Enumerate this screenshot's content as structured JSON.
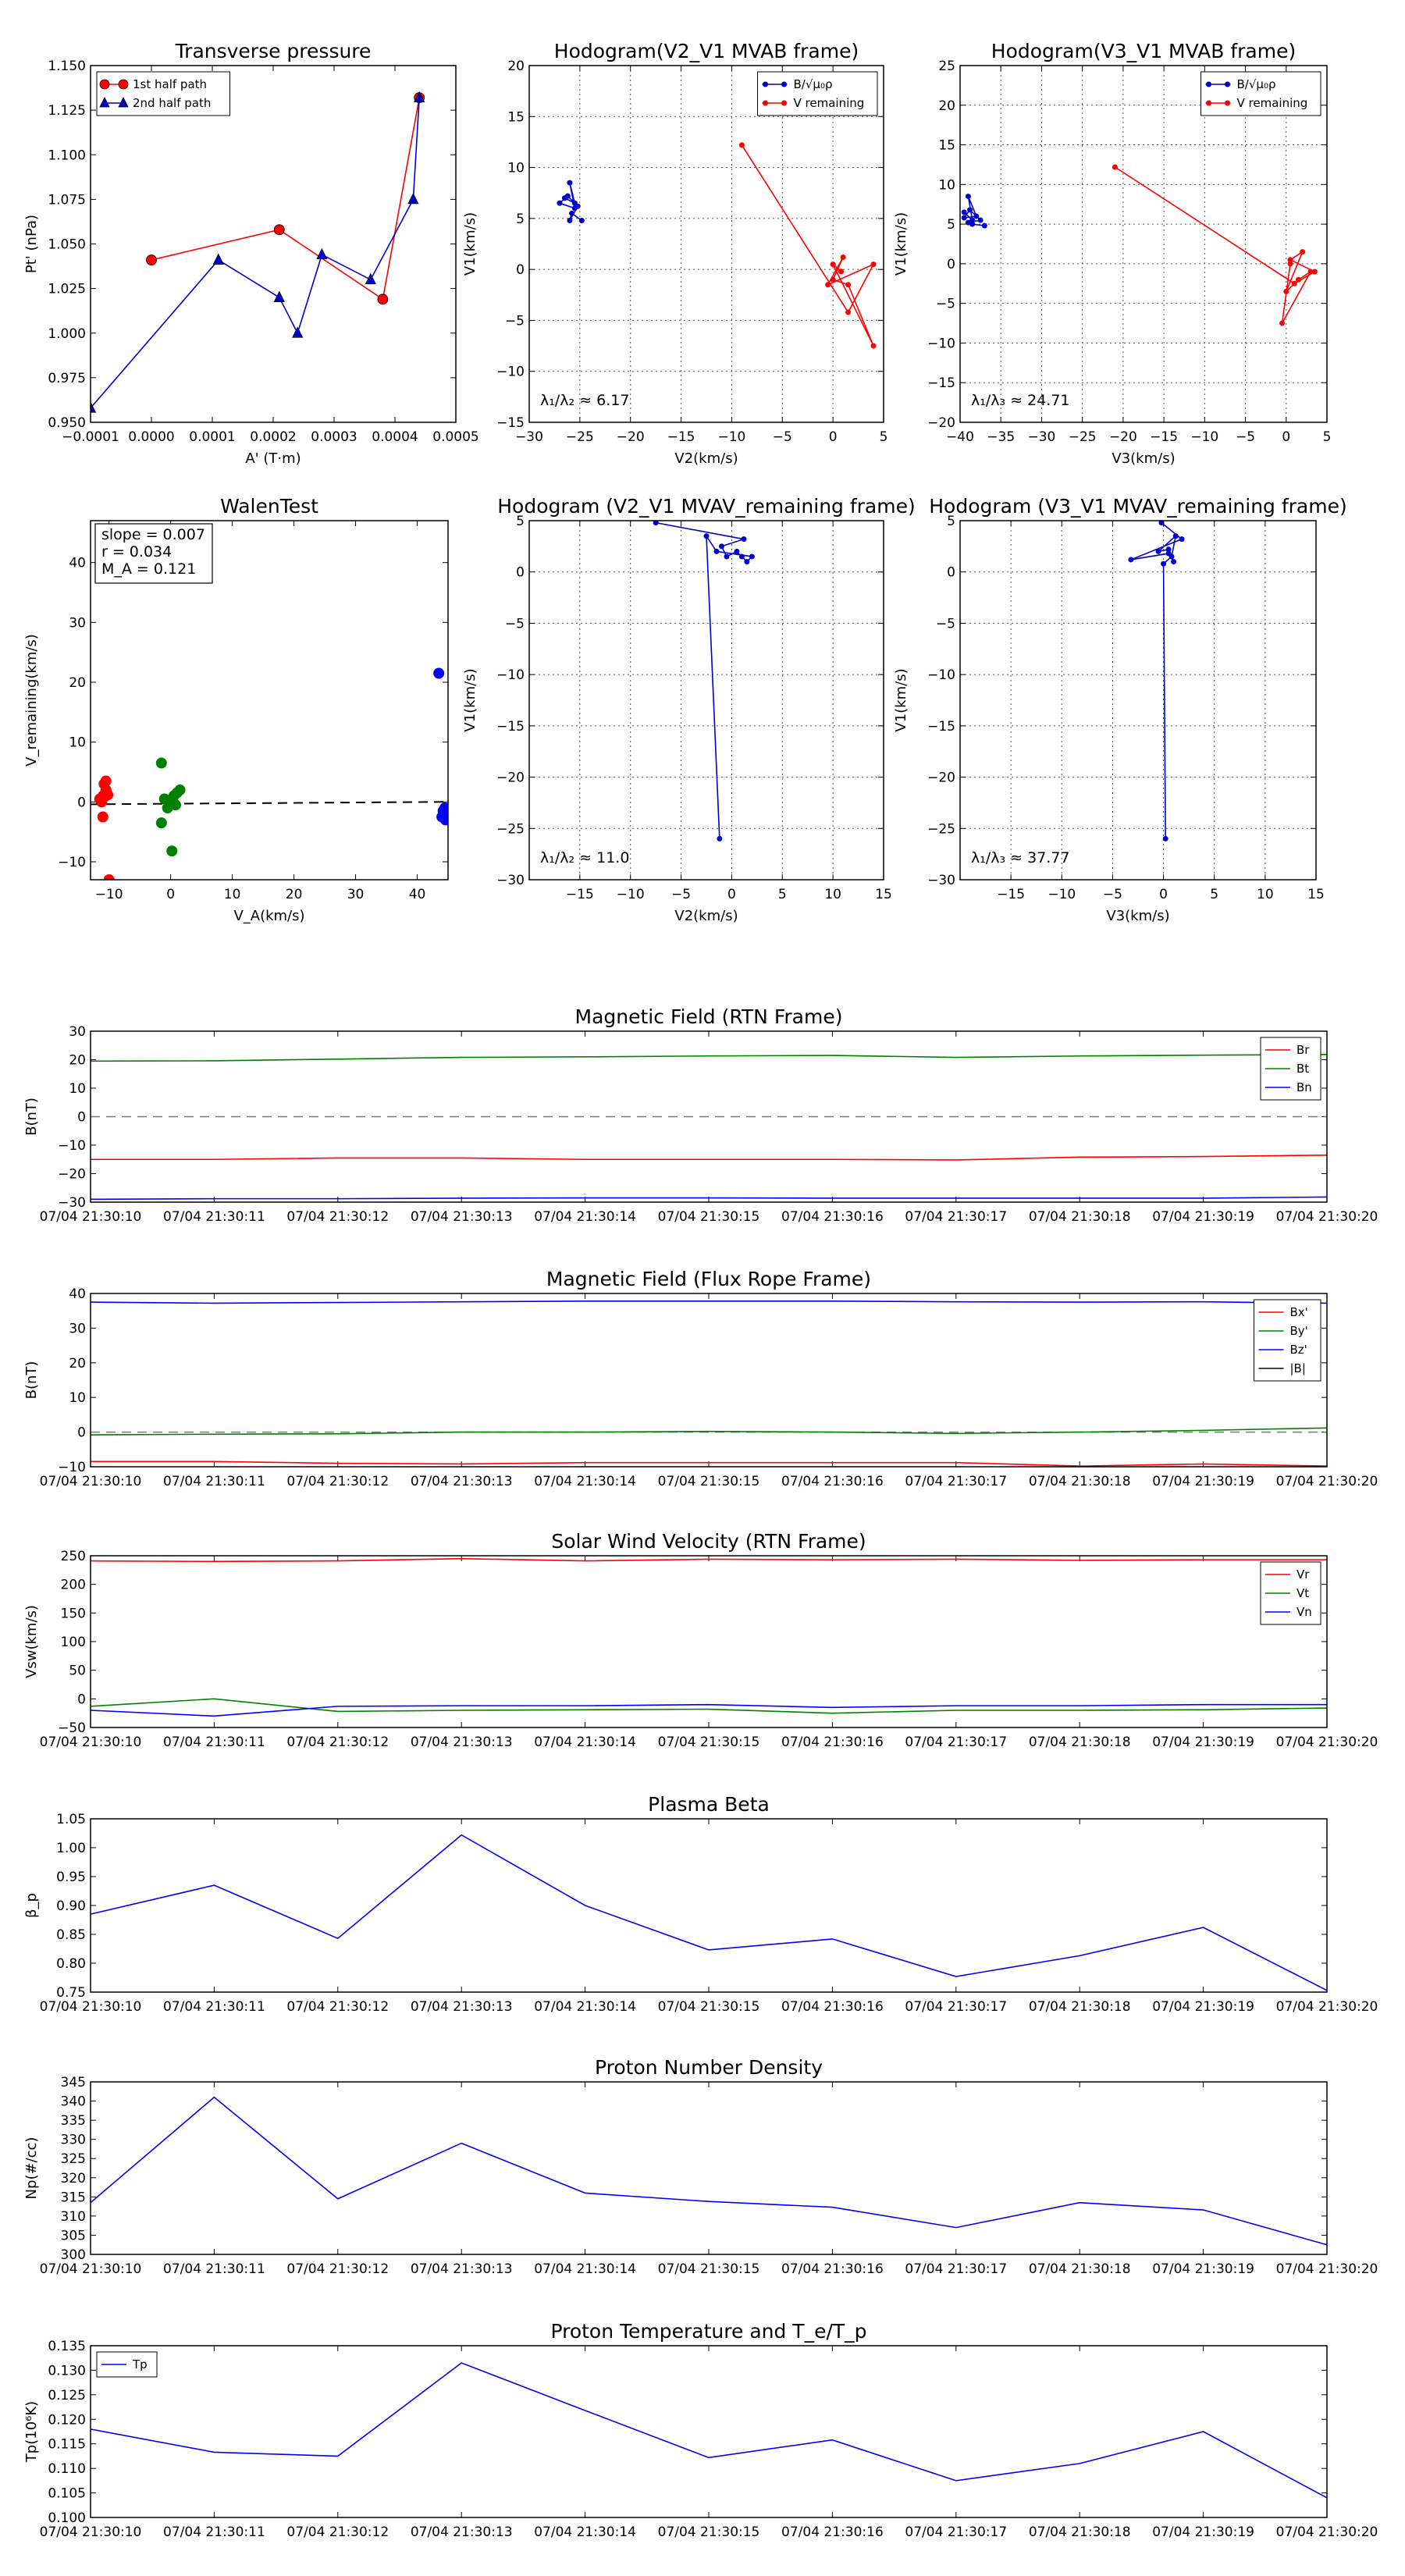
{
  "chart_data": [
    {
      "type": "line",
      "title": "Transverse pressure",
      "xlabel": "A' (T·m)",
      "ylabel": "Pt' (nPa)",
      "xlim": [
        -0.0001,
        0.0005
      ],
      "ylim": [
        0.95,
        1.15
      ],
      "xtick_values": [
        -0.0001,
        0,
        0.0001,
        0.0002,
        0.0003,
        0.0004,
        0.0005
      ],
      "xtick_labels": [
        "−0.0001",
        "0.0000",
        "0.0001",
        "0.0002",
        "0.0003",
        "0.0004",
        "0.0005"
      ],
      "ytick_values": [
        0.95,
        0.975,
        1.0,
        1.025,
        1.05,
        1.075,
        1.1,
        1.125,
        1.15
      ],
      "ytick_labels": [
        "0.950",
        "0.975",
        "1.000",
        "1.025",
        "1.050",
        "1.075",
        "1.100",
        "1.125",
        "1.150"
      ],
      "legend": "top-left",
      "series": [
        {
          "name": "1st half path",
          "color": "#ff0000",
          "marker": "circle",
          "x": [
            0.0,
            0.00021,
            0.00038,
            0.00044
          ],
          "y": [
            1.041,
            1.058,
            1.019,
            1.132
          ]
        },
        {
          "name": "2nd half path",
          "color": "#0000cc",
          "marker": "triangle",
          "x": [
            -0.0001,
            0.00011,
            0.00021,
            0.00024,
            0.00028,
            0.00036,
            0.00043,
            0.00044
          ],
          "y": [
            0.958,
            1.041,
            1.02,
            1.0,
            1.044,
            1.03,
            1.075,
            1.132
          ]
        }
      ]
    },
    {
      "type": "line",
      "title": "Hodogram(V2_V1 MVAB frame)",
      "xlabel": "V2(km/s)",
      "ylabel": "V1(km/s)",
      "xlim": [
        -30,
        5
      ],
      "ylim": [
        -15,
        20
      ],
      "xtick_values": [
        -30,
        -25,
        -20,
        -15,
        -10,
        -5,
        0,
        5
      ],
      "xtick_labels": [
        "−30",
        "−25",
        "−20",
        "−15",
        "−10",
        "−5",
        "0",
        "5"
      ],
      "ytick_values": [
        -15,
        -10,
        -5,
        0,
        5,
        10,
        15,
        20
      ],
      "ytick_labels": [
        "−15",
        "−10",
        "−5",
        "0",
        "5",
        "10",
        "15",
        "20"
      ],
      "legend": "top-right",
      "annotation": "λ₁/λ₂ ≈ 6.17",
      "series": [
        {
          "name": "B/√μ₀ρ",
          "color": "#0000cc",
          "x": [
            -26.5,
            -25.5,
            -26.0,
            -25.5,
            -27.0,
            -26.2,
            -25.2,
            -26.0,
            -25.8,
            -24.8
          ],
          "y": [
            7.0,
            6.5,
            8.5,
            6.0,
            6.5,
            7.2,
            6.2,
            4.8,
            5.5,
            4.8
          ]
        },
        {
          "name": "V remaining",
          "color": "#ff0000",
          "x": [
            -9.0,
            1.5,
            4.0,
            -0.5,
            1.0,
            0.0,
            1.5,
            4.0,
            0.0,
            0.8
          ],
          "y": [
            12.2,
            -4.2,
            0.5,
            -1.5,
            1.2,
            -1.0,
            -1.5,
            -7.5,
            0.5,
            -0.2
          ]
        }
      ]
    },
    {
      "type": "line",
      "title": "Hodogram(V3_V1 MVAB frame)",
      "xlabel": "V3(km/s)",
      "ylabel": "V1(km/s)",
      "xlim": [
        -40,
        5
      ],
      "ylim": [
        -20,
        25
      ],
      "xtick_values": [
        -40,
        -35,
        -30,
        -25,
        -20,
        -15,
        -10,
        -5,
        0,
        5
      ],
      "xtick_labels": [
        "−40",
        "−35",
        "−30",
        "−25",
        "−20",
        "−15",
        "−10",
        "−5",
        "0",
        "5"
      ],
      "ytick_values": [
        -20,
        -15,
        -10,
        -5,
        0,
        5,
        10,
        15,
        20,
        25
      ],
      "ytick_labels": [
        "−20",
        "−15",
        "−10",
        "−5",
        "0",
        "5",
        "10",
        "15",
        "20",
        "25"
      ],
      "legend": "top-right",
      "annotation": "λ₁/λ₃ ≈ 24.71",
      "series": [
        {
          "name": "B/√μ₀ρ",
          "color": "#0000cc",
          "x": [
            -39.5,
            -38.5,
            -39.0,
            -38.0,
            -39.5,
            -38.8,
            -37.5,
            -39.0,
            -38.5,
            -37.0
          ],
          "y": [
            6.5,
            5.5,
            8.5,
            6.0,
            5.8,
            6.8,
            5.5,
            5.2,
            5.0,
            4.8
          ]
        },
        {
          "name": "V remaining",
          "color": "#ff0000",
          "x": [
            -21.0,
            1.0,
            3.5,
            0.5,
            2.0,
            0.0,
            1.5,
            3.0,
            -0.5,
            0.5
          ],
          "y": [
            12.2,
            -2.5,
            -1.0,
            0.5,
            1.5,
            -3.5,
            -2.0,
            -1.0,
            -7.5,
            0.0
          ]
        }
      ]
    },
    {
      "type": "scatter",
      "title": "WalenTest",
      "xlabel": "V_A(km/s)",
      "ylabel": "V_remaining(km/s)",
      "xlim": [
        -13,
        45
      ],
      "ylim": [
        -13,
        47
      ],
      "xtick_values": [
        -10,
        0,
        10,
        20,
        30,
        40
      ],
      "xtick_labels": [
        "−10",
        "0",
        "10",
        "20",
        "30",
        "40"
      ],
      "ytick_values": [
        -10,
        0,
        10,
        20,
        30,
        40
      ],
      "ytick_labels": [
        "−10",
        "0",
        "10",
        "20",
        "30",
        "40"
      ],
      "annotation_lines": [
        "slope = 0.007",
        "r = 0.034",
        "M_A = 0.121"
      ],
      "fit_line": {
        "slope": 0.007,
        "intercept": -0.3
      },
      "series": [
        {
          "name": "red",
          "color": "#ff0000",
          "x": [
            -11.5,
            -11.0,
            -10.5,
            -10.8,
            -11.2,
            -10.6,
            -11.0,
            -10.2,
            -10.8,
            -11.3,
            -10.5,
            -10.0
          ],
          "y": [
            0.5,
            1.0,
            2.0,
            3.0,
            0.0,
            1.5,
            -2.5,
            1.2,
            0.8,
            0.3,
            3.5,
            -13.0
          ]
        },
        {
          "name": "green",
          "color": "#008000",
          "x": [
            -1.5,
            -1.0,
            -0.5,
            0.0,
            0.5,
            1.0,
            1.5,
            -1.5,
            0.2,
            0.8
          ],
          "y": [
            6.5,
            0.5,
            -1.0,
            0.0,
            1.0,
            1.5,
            2.0,
            -3.5,
            -8.2,
            -0.5
          ]
        },
        {
          "name": "blue",
          "color": "#0000ff",
          "x": [
            43.5,
            44.0,
            44.5,
            44.8,
            44.2,
            44.6
          ],
          "y": [
            21.5,
            -2.5,
            -1.0,
            -2.0,
            -1.5,
            -3.0
          ]
        }
      ]
    },
    {
      "type": "line",
      "title": "Hodogram (V2_V1 MVAV_remaining frame)",
      "xlabel": "V2(km/s)",
      "ylabel": "V1(km/s)",
      "xlim": [
        -20,
        15
      ],
      "ylim": [
        -30,
        5
      ],
      "xtick_values": [
        -15,
        -10,
        -5,
        0,
        5,
        10,
        15
      ],
      "xtick_labels": [
        "−15",
        "−10",
        "−5",
        "0",
        "5",
        "10",
        "15"
      ],
      "ytick_values": [
        -30,
        -25,
        -20,
        -15,
        -10,
        -5,
        0,
        5
      ],
      "ytick_labels": [
        "−30",
        "−25",
        "−20",
        "−15",
        "−10",
        "−5",
        "0",
        "5"
      ],
      "annotation": "λ₁/λ₂ ≈ 11.0",
      "series": [
        {
          "name": "V remaining",
          "color": "#0000cc",
          "x": [
            -7.5,
            1.2,
            -1.0,
            -0.5,
            0.5,
            1.0,
            1.5,
            2.0,
            -1.5,
            -2.5,
            -1.2
          ],
          "y": [
            4.8,
            3.2,
            2.5,
            1.5,
            2.0,
            1.5,
            1.0,
            1.5,
            2.0,
            3.5,
            -26.0
          ]
        }
      ]
    },
    {
      "type": "line",
      "title": "Hodogram (V3_V1 MVAV_remaining frame)",
      "xlabel": "V3(km/s)",
      "ylabel": "V1(km/s)",
      "xlim": [
        -20,
        15
      ],
      "ylim": [
        -30,
        5
      ],
      "xtick_values": [
        -15,
        -10,
        -5,
        0,
        5,
        10,
        15
      ],
      "xtick_labels": [
        "−15",
        "−10",
        "−5",
        "0",
        "5",
        "10",
        "15"
      ],
      "ytick_values": [
        -30,
        -25,
        -20,
        -15,
        -10,
        -5,
        0,
        5
      ],
      "ytick_labels": [
        "−30",
        "−25",
        "−20",
        "−15",
        "−10",
        "−5",
        "0",
        "5"
      ],
      "annotation": "λ₁/λ₃ ≈ 37.77",
      "series": [
        {
          "name": "V remaining",
          "color": "#0000cc",
          "x": [
            -0.2,
            1.8,
            -3.2,
            0.5,
            1.0,
            0.5,
            -0.5,
            1.2,
            0.8,
            0.0,
            0.2
          ],
          "y": [
            4.8,
            3.2,
            1.2,
            1.8,
            1.0,
            2.2,
            2.0,
            3.5,
            1.5,
            0.8,
            -26.0
          ]
        }
      ]
    },
    {
      "type": "line",
      "title": "Magnetic Field (RTN Frame)",
      "xlabel": "",
      "ylabel": "B(nT)",
      "ylim": [
        -30,
        30
      ],
      "ytick_values": [
        -30,
        -20,
        -10,
        0,
        10,
        20,
        30
      ],
      "ytick_labels": [
        "−30",
        "−20",
        "−10",
        "0",
        "10",
        "20",
        "30"
      ],
      "legend": "top-right",
      "zero_line": true,
      "series": [
        {
          "name": "Br",
          "color": "#ff0000",
          "values": [
            -15.0,
            -15.0,
            -14.5,
            -14.5,
            -15.0,
            -15.0,
            -15.0,
            -15.2,
            -14.2,
            -14.0,
            -13.5
          ]
        },
        {
          "name": "Bt",
          "color": "#008000",
          "values": [
            19.5,
            19.6,
            20.2,
            20.8,
            21.0,
            21.3,
            21.5,
            20.8,
            21.3,
            21.6,
            21.8
          ]
        },
        {
          "name": "Bn",
          "color": "#0000ff",
          "values": [
            -29.0,
            -28.8,
            -28.8,
            -28.6,
            -28.5,
            -28.5,
            -28.6,
            -28.6,
            -28.6,
            -28.6,
            -28.2
          ]
        }
      ]
    },
    {
      "type": "line",
      "title": "Magnetic Field (Flux Rope Frame)",
      "xlabel": "",
      "ylabel": "B(nT)",
      "ylim": [
        -10,
        40
      ],
      "ytick_values": [
        -10,
        0,
        10,
        20,
        30,
        40
      ],
      "ytick_labels": [
        "−10",
        "0",
        "10",
        "20",
        "30",
        "40"
      ],
      "legend": "top-right",
      "zero_line": true,
      "series": [
        {
          "name": "Bx'",
          "color": "#ff0000",
          "values": [
            -8.5,
            -8.5,
            -9.0,
            -9.2,
            -8.8,
            -8.8,
            -8.8,
            -8.8,
            -9.8,
            -9.2,
            -9.8
          ]
        },
        {
          "name": "By'",
          "color": "#008000",
          "values": [
            -0.8,
            -0.6,
            -0.5,
            0.0,
            0.0,
            0.2,
            0.0,
            -0.4,
            0.0,
            0.5,
            1.2
          ]
        },
        {
          "name": "Bz'",
          "color": "#0000ff",
          "values": [
            37.5,
            37.2,
            37.4,
            37.6,
            37.8,
            37.8,
            37.8,
            37.6,
            37.5,
            37.6,
            37.2
          ]
        },
        {
          "name": "|B|",
          "color": "#000000",
          "values": []
        }
      ]
    },
    {
      "type": "line",
      "title": "Solar Wind Velocity (RTN Frame)",
      "xlabel": "",
      "ylabel": "Vsw(km/s)",
      "ylim": [
        -50,
        250
      ],
      "ytick_values": [
        -50,
        0,
        50,
        100,
        150,
        200,
        250
      ],
      "ytick_labels": [
        "−50",
        "0",
        "50",
        "100",
        "150",
        "200",
        "250"
      ],
      "legend": "top-right",
      "series": [
        {
          "name": "Vr",
          "color": "#ff0000",
          "values": [
            241,
            240,
            241,
            245,
            241,
            244,
            243,
            244,
            242,
            243,
            243
          ]
        },
        {
          "name": "Vt",
          "color": "#008000",
          "values": [
            -13,
            0,
            -22,
            -20,
            -19,
            -18,
            -25,
            -20,
            -20,
            -19,
            -16
          ]
        },
        {
          "name": "Vn",
          "color": "#0000ff",
          "values": [
            -20,
            -30,
            -13,
            -12,
            -12,
            -10,
            -15,
            -12,
            -12,
            -10,
            -10
          ]
        }
      ]
    },
    {
      "type": "line",
      "title": "Plasma Beta",
      "xlabel": "",
      "ylabel": "β_p",
      "ylim": [
        0.75,
        1.05
      ],
      "ytick_values": [
        0.75,
        0.8,
        0.85,
        0.9,
        0.95,
        1.0,
        1.05
      ],
      "ytick_labels": [
        "0.75",
        "0.80",
        "0.85",
        "0.90",
        "0.95",
        "1.00",
        "1.05"
      ],
      "series": [
        {
          "name": "beta",
          "color": "#0000ff",
          "values": [
            0.885,
            0.935,
            0.843,
            1.022,
            0.9,
            0.823,
            0.842,
            0.777,
            0.813,
            0.862,
            0.753
          ]
        }
      ]
    },
    {
      "type": "line",
      "title": "Proton Number Density",
      "xlabel": "",
      "ylabel": "Np(#/cc)",
      "ylim": [
        300,
        345
      ],
      "ytick_values": [
        300,
        305,
        310,
        315,
        320,
        325,
        330,
        335,
        340,
        345
      ],
      "ytick_labels": [
        "300",
        "305",
        "310",
        "315",
        "320",
        "325",
        "330",
        "335",
        "340",
        "345"
      ],
      "series": [
        {
          "name": "Np",
          "color": "#0000ff",
          "values": [
            313.5,
            341,
            314.5,
            329,
            316,
            313.8,
            312.3,
            307,
            313.5,
            311.6,
            302.5
          ]
        }
      ]
    },
    {
      "type": "line",
      "title": "Proton Temperature and T_e/T_p",
      "xlabel": "",
      "ylabel": "Tp(10⁶K)",
      "ylim": [
        0.1,
        0.135
      ],
      "ytick_values": [
        0.1,
        0.105,
        0.11,
        0.115,
        0.12,
        0.125,
        0.13,
        0.135
      ],
      "ytick_labels": [
        "0.100",
        "0.105",
        "0.110",
        "0.115",
        "0.120",
        "0.125",
        "0.130",
        "0.135"
      ],
      "legend": "top-left",
      "series": [
        {
          "name": "Tp",
          "color": "#0000ff",
          "values": [
            0.118,
            0.1133,
            0.1125,
            0.1315,
            0.1218,
            0.1122,
            0.1158,
            0.1075,
            0.111,
            0.1175,
            0.104
          ]
        }
      ]
    }
  ],
  "time_axis": {
    "labels": [
      "07/04 21:30:10",
      "07/04 21:30:11",
      "07/04 21:30:12",
      "07/04 21:30:13",
      "07/04 21:30:14",
      "07/04 21:30:15",
      "07/04 21:30:16",
      "07/04 21:30:17",
      "07/04 21:30:18",
      "07/04 21:30:19",
      "07/04 21:30:20"
    ]
  }
}
